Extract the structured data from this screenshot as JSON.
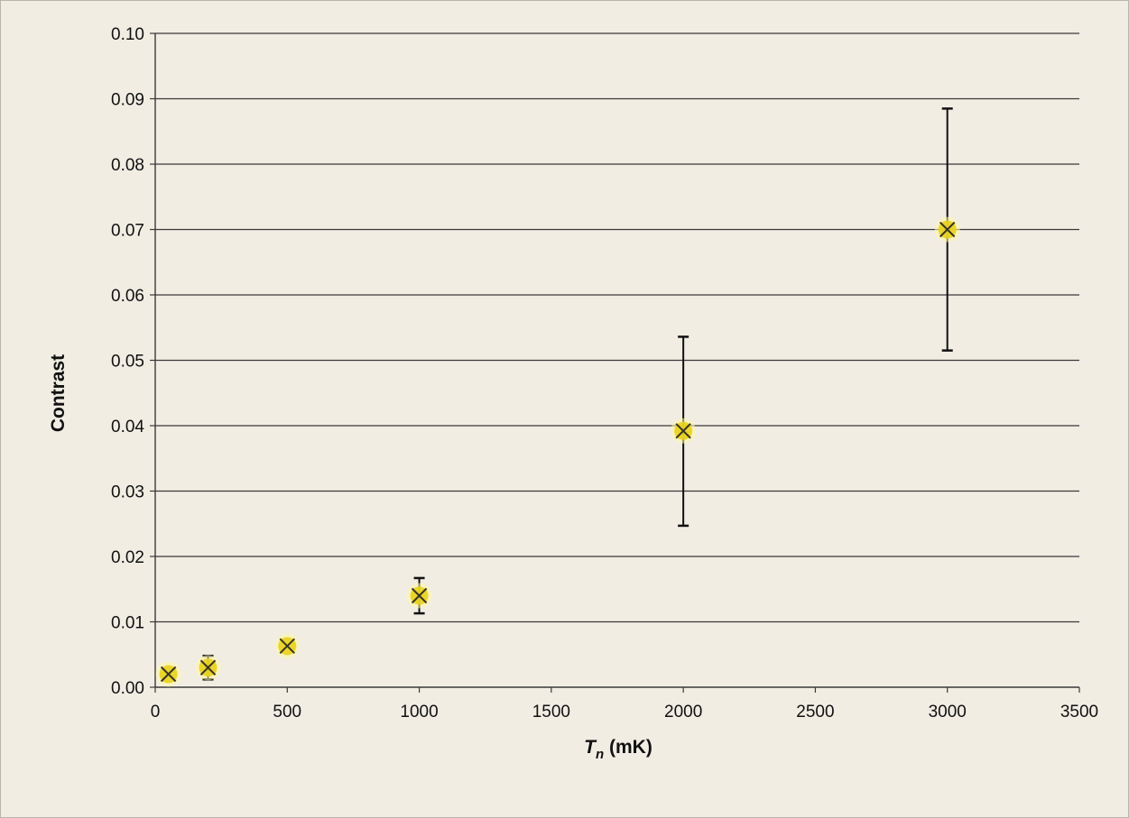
{
  "chart_data": {
    "type": "scatter",
    "title": "",
    "xlabel_main": "T",
    "xlabel_sub": "n",
    "xlabel_unit": " (mK)",
    "ylabel": "Contrast",
    "xlim": [
      0,
      3500
    ],
    "ylim": [
      0,
      0.1
    ],
    "x_ticks": [
      0,
      500,
      1000,
      1500,
      2000,
      2500,
      3000,
      3500
    ],
    "x_tick_labels": [
      "0",
      "500",
      "1000",
      "1500",
      "2000",
      "2500",
      "3000",
      "3500"
    ],
    "y_ticks": [
      0,
      0.01,
      0.02,
      0.03,
      0.04,
      0.05,
      0.06,
      0.07,
      0.08,
      0.09,
      0.1
    ],
    "y_tick_labels": [
      "0.00",
      "0.01",
      "0.02",
      "0.03",
      "0.04",
      "0.05",
      "0.06",
      "0.07",
      "0.08",
      "0.09",
      "0.10"
    ],
    "grid": "horizontal",
    "legend": "none",
    "series": [
      {
        "marker": "x-on-yellow-disc",
        "color": "#e8d21c",
        "points": [
          {
            "x": 50,
            "y": 0.002,
            "err_low": null,
            "err_high": null
          },
          {
            "x": 200,
            "y": 0.003,
            "err_low": 0.0012,
            "err_high": 0.0048
          },
          {
            "x": 500,
            "y": 0.0063,
            "err_low": null,
            "err_high": null
          },
          {
            "x": 1000,
            "y": 0.014,
            "err_low": 0.0113,
            "err_high": 0.0167
          },
          {
            "x": 2000,
            "y": 0.0392,
            "err_low": 0.0247,
            "err_high": 0.0536
          },
          {
            "x": 3000,
            "y": 0.07,
            "err_low": 0.0515,
            "err_high": 0.0885
          }
        ]
      }
    ]
  }
}
